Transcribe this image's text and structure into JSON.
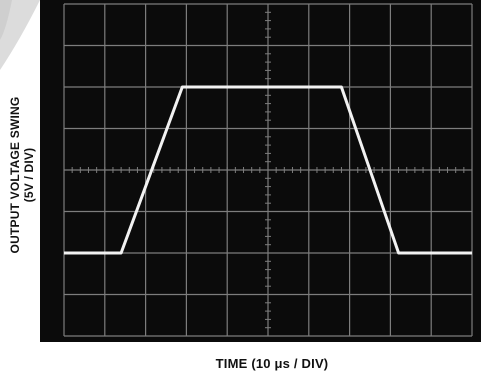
{
  "chart_data": {
    "type": "line",
    "title": "",
    "xlabel": "TIME (10 μs / DIV)",
    "ylabel": "OUTPUT VOLTAGE SWING",
    "ylabel_units": "(5V / DIV)",
    "xlim": [
      0,
      100
    ],
    "ylim": [
      -20,
      20
    ],
    "grid": true,
    "x_divisions": 10,
    "y_divisions": 8,
    "trace_color": "#f2f2f2",
    "screen_color": "#0b0b0b",
    "grid_color": "#7d7d7d",
    "series": [
      {
        "x": [
          0,
          14,
          29,
          68,
          82,
          100
        ],
        "y": [
          -10,
          -10,
          10,
          10,
          -10,
          -10
        ]
      }
    ]
  }
}
